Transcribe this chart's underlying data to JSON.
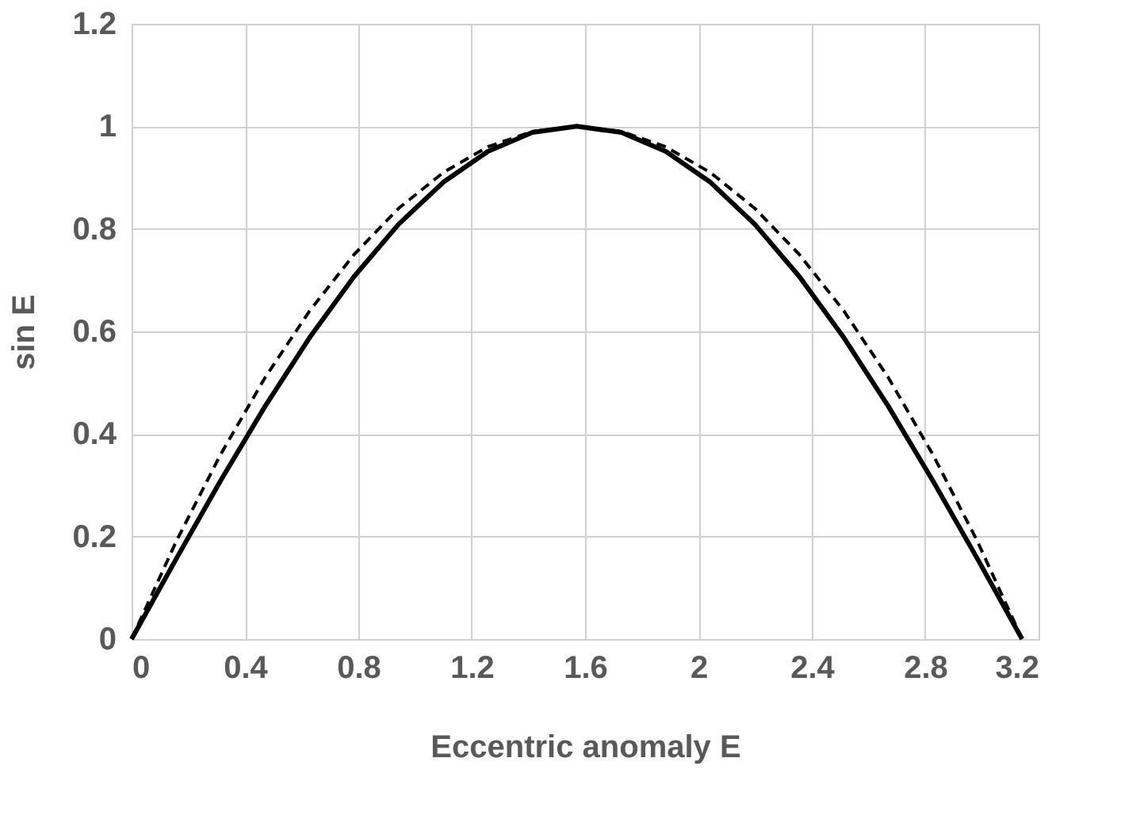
{
  "chart_data": {
    "type": "line",
    "xlabel": "Eccentric anomaly E",
    "ylabel": "sin E",
    "x": [
      0,
      0.157,
      0.314,
      0.471,
      0.628,
      0.785,
      0.942,
      1.1,
      1.257,
      1.414,
      1.571,
      1.728,
      1.885,
      2.042,
      2.199,
      2.356,
      2.513,
      2.67,
      2.827,
      2.985,
      3.142
    ],
    "series": [
      {
        "color": "#000000",
        "line_style": "solid",
        "values": [
          0,
          0.156,
          0.309,
          0.454,
          0.588,
          0.707,
          0.809,
          0.891,
          0.951,
          0.988,
          1,
          0.988,
          0.951,
          0.891,
          0.809,
          0.707,
          0.588,
          0.454,
          0.309,
          0.156,
          0
        ]
      },
      {
        "color": "#000000",
        "line_style": "dashed",
        "values": [
          0,
          0.19,
          0.36,
          0.51,
          0.64,
          0.75,
          0.84,
          0.91,
          0.96,
          0.99,
          1,
          0.99,
          0.96,
          0.91,
          0.84,
          0.75,
          0.64,
          0.51,
          0.36,
          0.19,
          0
        ]
      }
    ],
    "xlim": [
      0,
      3.2
    ],
    "xticks": [
      0,
      0.4,
      0.8,
      1.2,
      1.6,
      2,
      2.4,
      2.8,
      3.2
    ],
    "ylim": [
      0,
      1.2
    ],
    "yticks": [
      0,
      0.2,
      0.4,
      0.6,
      0.8,
      1,
      1.2
    ],
    "grid": true,
    "marker": "none"
  }
}
